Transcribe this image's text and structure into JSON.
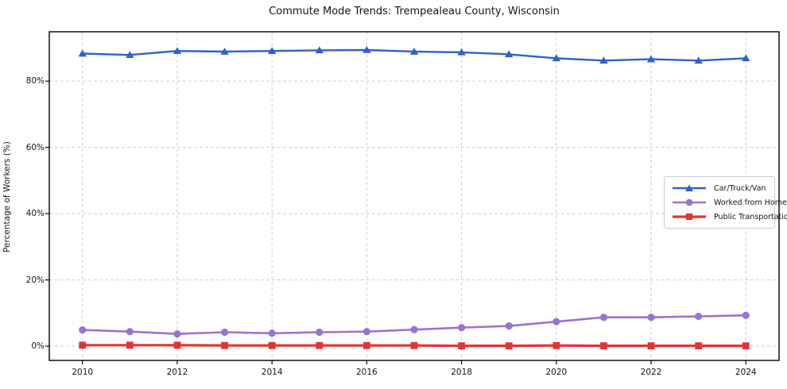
{
  "chart_data": {
    "type": "line",
    "title": "Commute Mode Trends: Trempealeau County, Wisconsin",
    "xlabel": "",
    "ylabel": "Percentage of Workers (%)",
    "x": [
      2010,
      2011,
      2012,
      2013,
      2014,
      2015,
      2016,
      2017,
      2018,
      2019,
      2020,
      2021,
      2022,
      2023,
      2024
    ],
    "series": [
      {
        "name": "Car/Truck/Van",
        "color": "#2e62c6",
        "marker": "triangle",
        "values": [
          88.3,
          87.9,
          89.1,
          88.9,
          89.1,
          89.3,
          89.4,
          88.9,
          88.7,
          88.1,
          86.9,
          86.2,
          86.6,
          86.2,
          86.9
        ]
      },
      {
        "name": "Worked from Home",
        "color": "#9b72d0",
        "marker": "circle",
        "values": [
          4.9,
          4.4,
          3.7,
          4.2,
          3.9,
          4.2,
          4.4,
          5.0,
          5.6,
          6.1,
          7.4,
          8.7,
          8.7,
          9.0,
          9.3
        ]
      },
      {
        "name": "Public Transportation",
        "color": "#e03534",
        "marker": "square",
        "values": [
          0.3,
          0.3,
          0.3,
          0.2,
          0.2,
          0.2,
          0.2,
          0.2,
          0.1,
          0.1,
          0.2,
          0.1,
          0.1,
          0.1,
          0.1
        ]
      }
    ],
    "xticks": [
      2010,
      2012,
      2014,
      2016,
      2018,
      2020,
      2022,
      2024
    ],
    "yticks": [
      0,
      20,
      40,
      60,
      80
    ],
    "ytick_suffix": "%",
    "xlim": [
      2009.3,
      2024.7
    ],
    "ylim": [
      -4.3,
      94.9
    ],
    "grid": true,
    "legend_position": "center right"
  },
  "colors": {
    "grid": "#cfcfcf",
    "spine": "#000000",
    "text": "#151515",
    "legend_border": "#cccccc"
  }
}
